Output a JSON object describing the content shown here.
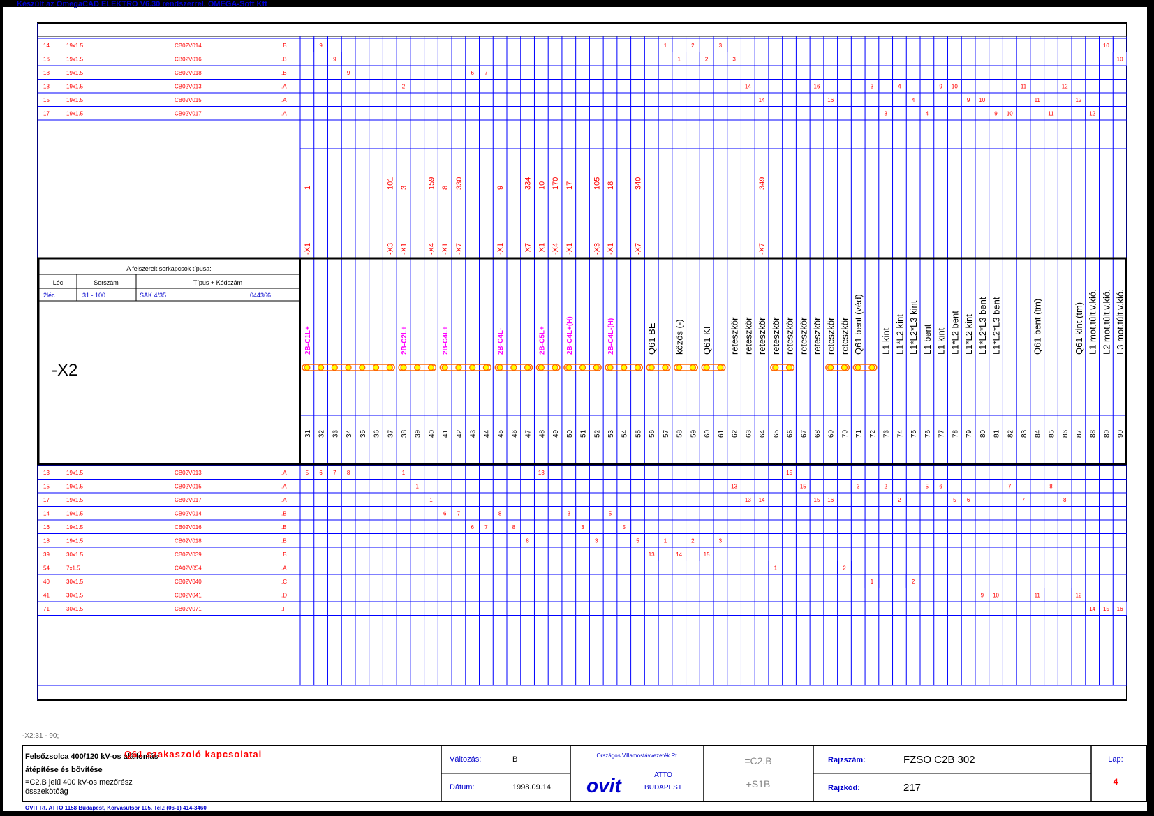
{
  "header_text": "Készült az OmegaCAD ELEKTRO V6.30 rendszerrel. OMEGA-Soft Kft",
  "strip_label": "-X2",
  "range_label": "-X2:31 - 90;",
  "types_box": {
    "title": "A felszerelt sorkapcsok típusa:",
    "headers": [
      "Léc",
      "Sorszám",
      "Típus + Kódszám"
    ],
    "row": [
      "2léc",
      "31  - 100",
      "SAK 4/35",
      "044366"
    ]
  },
  "cables_top": [
    [
      "14",
      "19x1.5",
      "CB02V014",
      ".B"
    ],
    [
      "16",
      "19x1.5",
      "CB02V016",
      ".B"
    ],
    [
      "18",
      "19x1.5",
      "CB02V018",
      ".B"
    ],
    [
      "13",
      "19x1.5",
      "CB02V013",
      ".A"
    ],
    [
      "15",
      "19x1.5",
      "CB02V015",
      ".A"
    ],
    [
      "17",
      "19x1.5",
      "CB02V017",
      ".A"
    ]
  ],
  "cables_bottom": [
    [
      "13",
      "19x1.5",
      "CB02V013",
      ".A"
    ],
    [
      "15",
      "19x1.5",
      "CB02V015",
      ".A"
    ],
    [
      "17",
      "19x1.5",
      "CB02V017",
      ".A"
    ],
    [
      "14",
      "19x1.5",
      "CB02V014",
      ".B"
    ],
    [
      "16",
      "19x1.5",
      "CB02V016",
      ".B"
    ],
    [
      "18",
      "19x1.5",
      "CB02V018",
      ".B"
    ],
    [
      "39",
      "30x1.5",
      "CB02V039",
      ".B"
    ],
    [
      "54",
      "7x1.5",
      "CA02V054",
      ".A"
    ],
    [
      "40",
      "30x1.5",
      "CB02V040",
      ".C"
    ],
    [
      "41",
      "30x1.5",
      "CB02V041",
      ".D"
    ],
    [
      "71",
      "30x1.5",
      "CB02V071",
      ".F"
    ]
  ],
  "terminals": [
    "31",
    "32",
    "33",
    "34",
    "35",
    "36",
    "37",
    "38",
    "39",
    "40",
    "41",
    "42",
    "43",
    "44",
    "45",
    "46",
    "47",
    "48",
    "49",
    "50",
    "51",
    "52",
    "53",
    "54",
    "55",
    "56",
    "57",
    "58",
    "59",
    "60",
    "61",
    "62",
    "63",
    "64",
    "65",
    "66",
    "67",
    "68",
    "69",
    "70",
    "71",
    "72",
    "73",
    "74",
    "75",
    "76",
    "77",
    "78",
    "79",
    "80",
    "81",
    "82",
    "83",
    "84",
    "85",
    "86",
    "87",
    "88",
    "89",
    "90"
  ],
  "refs": [
    {
      "t": 31,
      "a": ":1",
      "b": "-X1"
    },
    {
      "t": 37,
      "a": ":101",
      "b": "-X3"
    },
    {
      "t": 38,
      "a": ":3",
      "b": "-X1"
    },
    {
      "t": 40,
      "a": ":159",
      "b": "-X4"
    },
    {
      "t": 41,
      "a": ":8",
      "b": "-X1"
    },
    {
      "t": 42,
      "a": ":330",
      "b": "-X7"
    },
    {
      "t": 45,
      "a": ":9",
      "b": "-X1"
    },
    {
      "t": 47,
      "a": ":334",
      "b": "-X7"
    },
    {
      "t": 48,
      "a": ":10",
      "b": "-X1"
    },
    {
      "t": 49,
      "a": ":170",
      "b": "-X4"
    },
    {
      "t": 50,
      "a": ":17",
      "b": "-X1"
    },
    {
      "t": 52,
      "a": ":105",
      "b": "-X3"
    },
    {
      "t": 53,
      "a": ":18",
      "b": "-X1"
    },
    {
      "t": 55,
      "a": ":340",
      "b": "-X7"
    },
    {
      "t": 64,
      "a": ":349",
      "b": "-X7"
    }
  ],
  "functions_magenta": [
    {
      "t": 31,
      "label": "2B-C1L+"
    },
    {
      "t": 38,
      "label": "2B-C2L+"
    },
    {
      "t": 41,
      "label": "2B-C4L+"
    },
    {
      "t": 45,
      "label": "2B-C4L-"
    },
    {
      "t": 48,
      "label": "2B-C5L+"
    },
    {
      "t": 50,
      "label": "2B-C4L+(H)"
    },
    {
      "t": 53,
      "label": "2B-C4L-(H)"
    }
  ],
  "functions_black": [
    {
      "t": 56,
      "label": "Q61 BE"
    },
    {
      "t": 58,
      "label": "közös (-)"
    },
    {
      "t": 60,
      "label": "Q61 KI"
    },
    {
      "t": 62,
      "label": "reteszkör"
    },
    {
      "t": 63,
      "label": "reteszkör"
    },
    {
      "t": 64,
      "label": "reteszkör"
    },
    {
      "t": 65,
      "label": "reteszkör"
    },
    {
      "t": 66,
      "label": "reteszkör"
    },
    {
      "t": 67,
      "label": "reteszkör"
    },
    {
      "t": 68,
      "label": "reteszkör"
    },
    {
      "t": 69,
      "label": "reteszkör"
    },
    {
      "t": 70,
      "label": "reteszkör"
    },
    {
      "t": 71,
      "label": "Q61 bent (véd)"
    },
    {
      "t": 73,
      "label": "L1 kint"
    },
    {
      "t": 74,
      "label": "L1*L2 kint"
    },
    {
      "t": 75,
      "label": "L1*L2*L3 kint"
    },
    {
      "t": 76,
      "label": "L1 bent"
    },
    {
      "t": 77,
      "label": "L1 kint"
    },
    {
      "t": 78,
      "label": "L1*L2 bent"
    },
    {
      "t": 79,
      "label": "L1*L2 kint"
    },
    {
      "t": 80,
      "label": "L1*L2*L3 bent"
    },
    {
      "t": 81,
      "label": "L1*L2*L3 bent"
    },
    {
      "t": 84,
      "label": "Q61 bent (tm)"
    },
    {
      "t": 87,
      "label": "Q61 kint (tm)"
    },
    {
      "t": 88,
      "label": "L1 mot.túlt.v.kió."
    },
    {
      "t": 89,
      "label": "L2 mot.túlt.v.kió."
    },
    {
      "t": 90,
      "label": "L3 mot.túlt.v.kió."
    }
  ],
  "title_block": {
    "project_line1": "Felsőzsolca 400/120 kV-os alállomás",
    "project_line2": "átépítése és bővítése",
    "project_line3": "=C2.B jelű 400 kV-os mezőrész",
    "project_line4": "összekötőág",
    "drawing_title": "Q61 szakaszoló kapcsolatai",
    "change_label": "Változás:",
    "change_value": "B",
    "date_label": "Dátum:",
    "date_value": "1998.09.14.",
    "company_line": "Országos Villamostávvezeték Rt",
    "logo_text": "ovit",
    "atto": "ATTO",
    "city": "BUDAPEST",
    "code1": "=C2.B",
    "code2": "+S1B",
    "drawing_no_label": "Rajzszám:",
    "drawing_no": "FZSO C2B 302",
    "drawing_code_label": "Rajzkód:",
    "drawing_code": "217",
    "sheet_label": "Lap:",
    "sheet_value": "4",
    "footer": "OVIT Rt. ATTO 1158 Budapest, Körvasutsor 105. Tel.: (06-1) 414-3460"
  },
  "colors": {
    "line": "#0000ff",
    "red": "#ff0000",
    "magenta": "#ff00ff",
    "border": "#000000",
    "header_blue": "#0000cc",
    "jumper_fill": "#ffff00",
    "jumper_stroke": "#ff6600"
  }
}
